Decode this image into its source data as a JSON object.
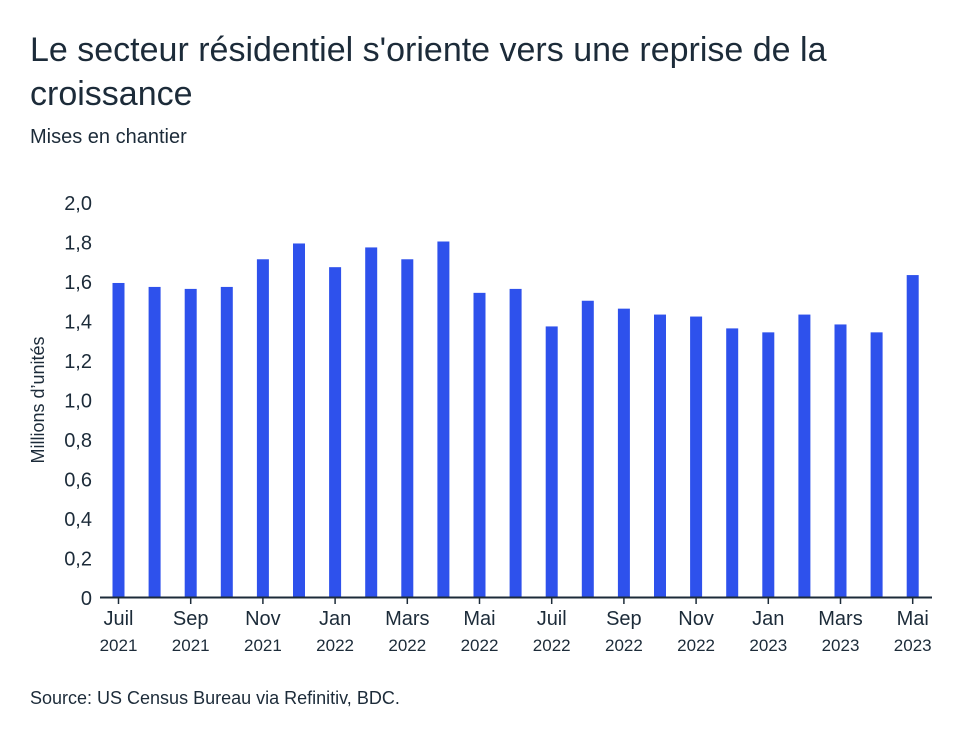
{
  "chart_data": {
    "type": "bar",
    "title": "Le secteur résidentiel s'oriente vers une reprise de la croissance",
    "subtitle": "Mises en chantier",
    "ylabel": "Millions d’unités",
    "xlabel": "",
    "ylim": [
      0,
      2.0
    ],
    "yticks": [
      "0",
      "0,2",
      "0,4",
      "0,6",
      "0,8",
      "1,0",
      "1,2",
      "1,4",
      "1,6",
      "1,8",
      "2,0"
    ],
    "xtick_labels": [
      [
        "Juil",
        "2021"
      ],
      [
        "Sep",
        "2021"
      ],
      [
        "Nov",
        "2021"
      ],
      [
        "Jan",
        "2022"
      ],
      [
        "Mars",
        "2022"
      ],
      [
        "Mai",
        "2022"
      ],
      [
        "Juil",
        "2022"
      ],
      [
        "Sep",
        "2022"
      ],
      [
        "Nov",
        "2022"
      ],
      [
        "Jan",
        "2023"
      ],
      [
        "Mars",
        "2023"
      ],
      [
        "Mai",
        "2023"
      ]
    ],
    "categories": [
      "2021-07",
      "2021-08",
      "2021-09",
      "2021-10",
      "2021-11",
      "2021-12",
      "2022-01",
      "2022-02",
      "2022-03",
      "2022-04",
      "2022-05",
      "2022-06",
      "2022-07",
      "2022-08",
      "2022-09",
      "2022-10",
      "2022-11",
      "2022-12",
      "2023-01",
      "2023-02",
      "2023-03",
      "2023-04",
      "2023-05"
    ],
    "values": [
      1.59,
      1.57,
      1.56,
      1.57,
      1.71,
      1.79,
      1.67,
      1.77,
      1.71,
      1.8,
      1.54,
      1.56,
      1.37,
      1.5,
      1.46,
      1.43,
      1.42,
      1.36,
      1.34,
      1.43,
      1.38,
      1.34,
      1.63
    ],
    "bar_color": "#2e51ec",
    "grid": false,
    "source": "Source: US Census Bureau via Refinitiv, BDC."
  }
}
